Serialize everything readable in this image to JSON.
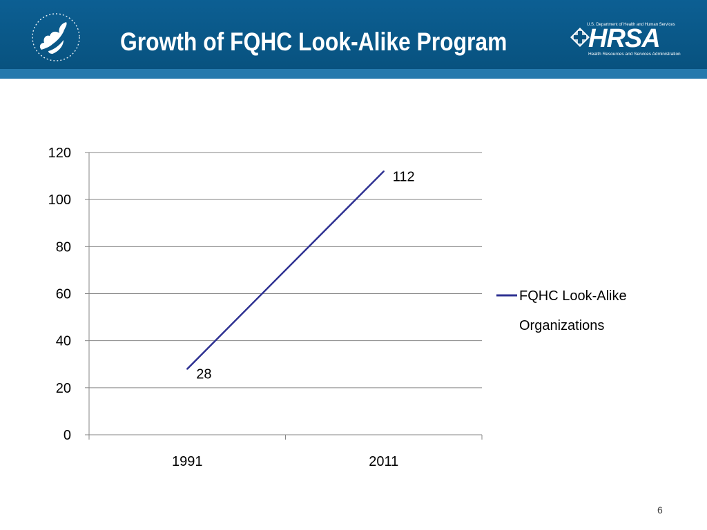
{
  "header": {
    "title": "Growth of FQHC Look-Alike Program",
    "hrsa_logo": {
      "department": "U.S. Department of Health and Human Services",
      "word": "HRSA",
      "subtitle": "Health Resources and Services Administration"
    },
    "hhs_logo_icon": "hhs-eagle-icon"
  },
  "chart_data": {
    "type": "line",
    "title": "",
    "xlabel": "",
    "ylabel": "",
    "categories": [
      "1991",
      "2011"
    ],
    "series": [
      {
        "name": "FQHC Look-Alike Organizations",
        "values": [
          28,
          112
        ],
        "color": "#2e3192",
        "data_labels": [
          "28",
          "112"
        ]
      }
    ],
    "ylim": [
      0,
      120
    ],
    "yticks": [
      0,
      20,
      40,
      60,
      80,
      100,
      120
    ],
    "grid": true,
    "legend": "right"
  },
  "legend": {
    "line1": "FQHC Look-Alike",
    "line2": "Organizations"
  },
  "footer": {
    "page_number": "6"
  },
  "colors": {
    "header_bg": "#0c5f93",
    "header_stripe": "#2579ad",
    "series_line": "#2e3192",
    "gridline": "#868686"
  }
}
